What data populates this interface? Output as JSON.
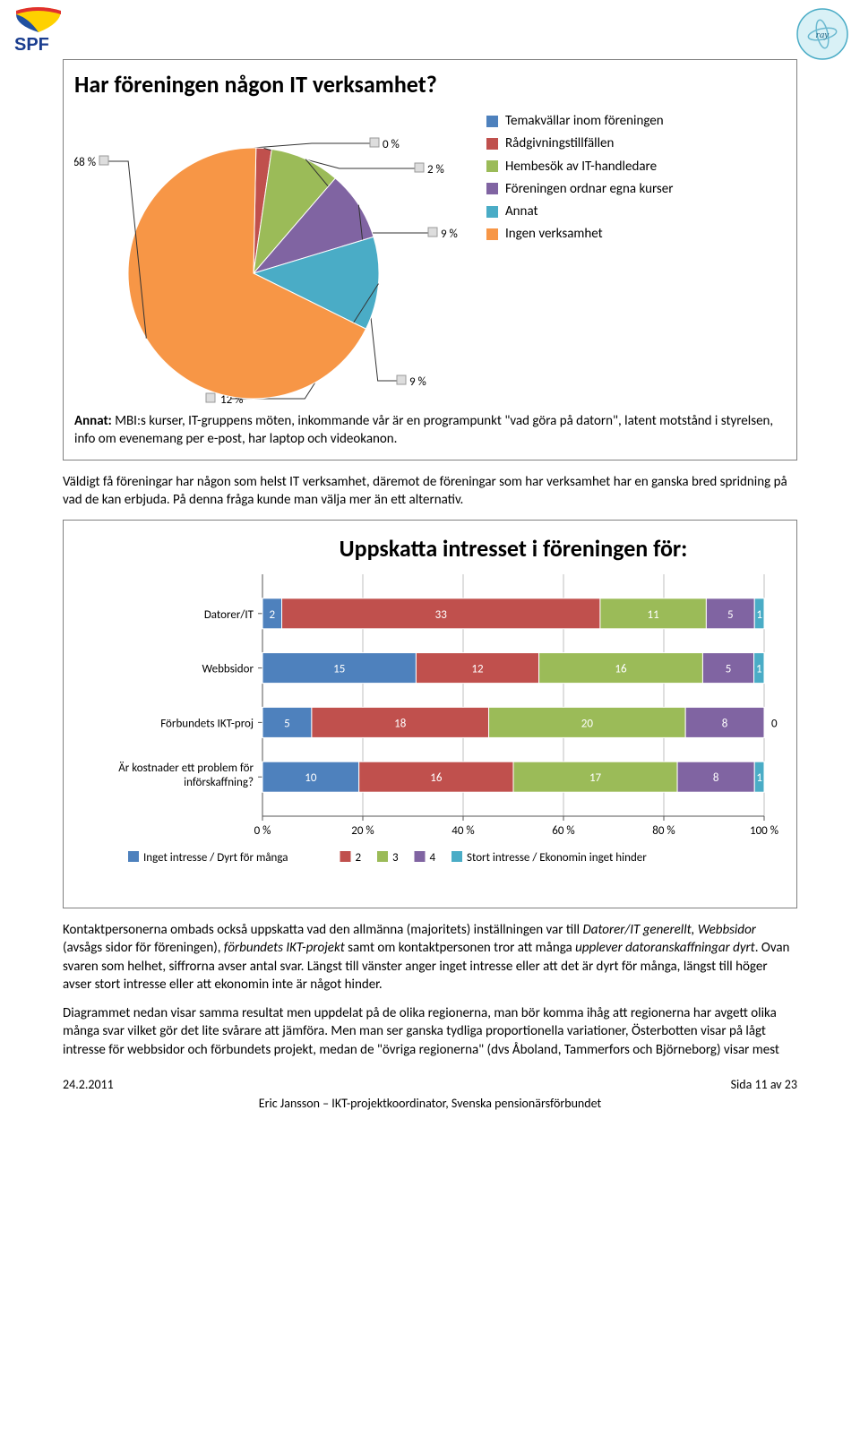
{
  "logos": {
    "spf_text": "SPF",
    "ray_text": "ray"
  },
  "pie": {
    "title": "Har föreningen någon IT verksamhet?",
    "background_color": "#ffffff",
    "border_color": "#808080",
    "slices": [
      {
        "label": "Temakvällar inom föreningen",
        "value": 0,
        "color": "#4e81bd",
        "labelText": "0 %"
      },
      {
        "label": "Rådgivningstillfällen",
        "value": 2,
        "color": "#c0504d",
        "labelText": "2 %"
      },
      {
        "label": "Hembesök av IT-handledare",
        "value": 9,
        "color": "#9bbb58",
        "labelText": "9 %"
      },
      {
        "label": "Föreningen ordnar egna kurser",
        "value": 9,
        "color": "#8064a2",
        "labelText": "9 %"
      },
      {
        "label": "Annat",
        "value": 12,
        "color": "#4aacc6",
        "labelText": "12 %"
      },
      {
        "label": "Ingen verksamhet",
        "value": 68,
        "color": "#f79646",
        "labelText": "68 %"
      }
    ],
    "leader_color": "#333333",
    "label_font_size": 13,
    "annat_prefix": "Annat: ",
    "annat_text": "MBI:s kurser, IT-gruppens möten, inkommande vår är en programpunkt \"vad göra på datorn\", latent motstånd i styrelsen, info om evenemang per e-post, har laptop och videokanon."
  },
  "para1": "Väldigt få föreningar har någon som helst IT verksamhet, däremot de föreningar som har verksamhet har en ganska bred spridning på vad de kan erbjuda. På denna fråga kunde man välja mer än ett alternativ.",
  "stacked": {
    "title": "Uppskatta intresset i föreningen för:",
    "title_fontsize": 26,
    "categories": [
      "Datorer/IT",
      "Webbsidor",
      "Förbundets IKT-proj",
      "Är kostnader ett problem för införskaffning?"
    ],
    "series": [
      {
        "name": "Inget intresse / Dyrt för många",
        "color": "#4e81bd"
      },
      {
        "name": "2",
        "color": "#c0504d"
      },
      {
        "name": "3",
        "color": "#9bbb58"
      },
      {
        "name": "4",
        "color": "#8064a2"
      },
      {
        "name": "Stort intresse / Ekonomin inget hinder",
        "color": "#4aacc6"
      }
    ],
    "rows": [
      [
        2,
        33,
        11,
        5,
        1
      ],
      [
        15,
        12,
        16,
        5,
        1
      ],
      [
        5,
        18,
        20,
        8,
        0
      ],
      [
        10,
        16,
        17,
        8,
        1
      ]
    ],
    "xticks": [
      "0 %",
      "20 %",
      "40 %",
      "60 %",
      "80 %",
      "100 %"
    ],
    "xmin": 0,
    "xmax": 100,
    "grid_color": "#bfbfbf",
    "text_on_bar_color": "#ffffff",
    "label_font_size": 13
  },
  "para2_parts": {
    "p1a": "Kontaktpersonerna ombads också uppskatta vad den allmänna (majoritets) inställningen var till ",
    "i1": "Datorer/IT generellt, Webbsidor",
    "p1b": " (avsågs sidor för föreningen), ",
    "i2": "förbundets IKT-projekt",
    "p1c": " samt om kontaktpersonen tror att många ",
    "i3": "upplever datoranskaffningar dyrt",
    "p1d": ". Ovan svaren som helhet, siffrorna avser antal svar. Längst till vänster anger inget intresse eller att det är dyrt för många, längst till höger avser stort intresse eller att ekonomin inte är något hinder.",
    "p2": "Diagrammet nedan visar samma resultat men uppdelat på de olika regionerna, man bör komma ihåg att regionerna har avgett olika många svar vilket gör det lite svårare att jämföra. Men man ser ganska tydliga proportionella variationer, Österbotten visar på lågt intresse för webbsidor och förbundets projekt, medan de \"övriga regionerna\" (dvs Åboland, Tammerfors och Björneborg) visar mest"
  },
  "footer": {
    "date": "24.2.2011",
    "page": "Sida 11 av 23",
    "center": "Eric Jansson – IKT-projektkoordinator, Svenska pensionärsförbundet"
  }
}
